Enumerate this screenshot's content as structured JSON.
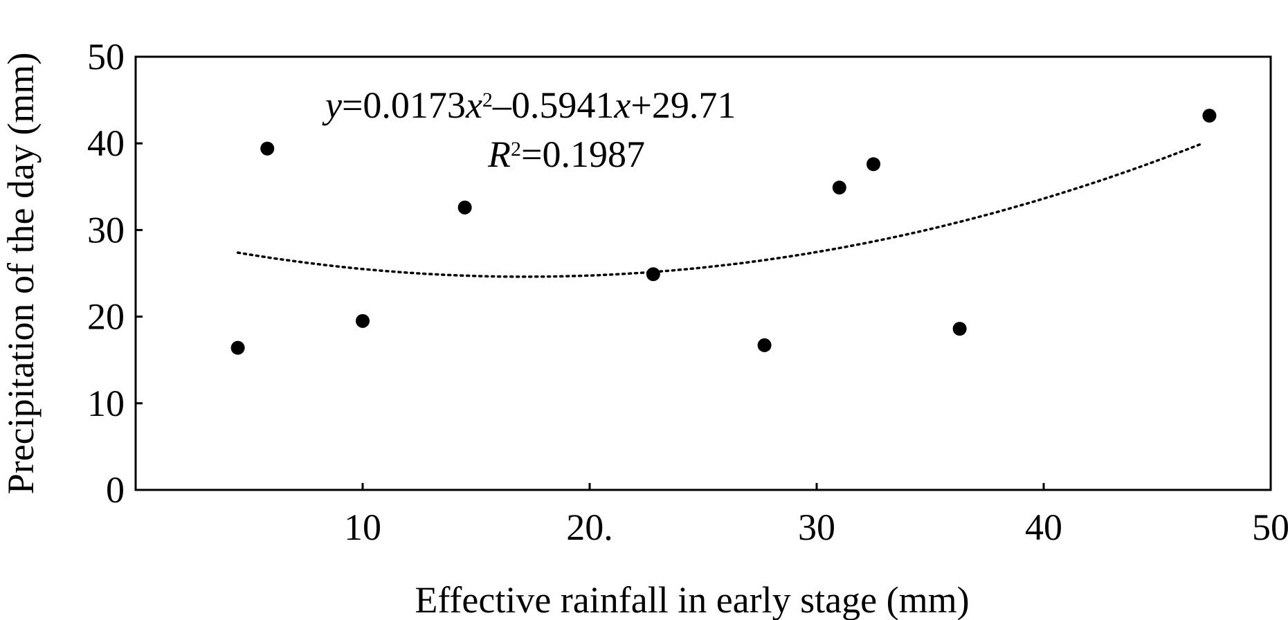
{
  "chart_data": {
    "type": "scatter",
    "xlabel": "Effective rainfall in early stage (mm)",
    "ylabel": "Precipitation of the day (mm)",
    "xlim": [
      0,
      50
    ],
    "ylim": [
      0,
      50
    ],
    "x_ticks": [
      {
        "value": 10,
        "label": "10"
      },
      {
        "value": 20,
        "label": "20."
      },
      {
        "value": 30,
        "label": "30"
      },
      {
        "value": 40,
        "label": "40"
      },
      {
        "value": 50,
        "label": "50"
      }
    ],
    "y_ticks": [
      {
        "value": 0,
        "label": "0"
      },
      {
        "value": 10,
        "label": "10"
      },
      {
        "value": 20,
        "label": "20"
      },
      {
        "value": 30,
        "label": "30"
      },
      {
        "value": 40,
        "label": "40"
      },
      {
        "value": 50,
        "label": "50"
      }
    ],
    "grid": false,
    "points": [
      {
        "x": 4.5,
        "y": 16.4
      },
      {
        "x": 5.8,
        "y": 39.4
      },
      {
        "x": 10.0,
        "y": 19.5
      },
      {
        "x": 14.5,
        "y": 32.6
      },
      {
        "x": 22.8,
        "y": 24.9
      },
      {
        "x": 27.7,
        "y": 16.7
      },
      {
        "x": 31.0,
        "y": 34.9
      },
      {
        "x": 32.5,
        "y": 37.6
      },
      {
        "x": 36.3,
        "y": 18.6
      },
      {
        "x": 47.3,
        "y": 43.2
      }
    ],
    "trendline": {
      "type": "polynomial",
      "coefficients": [
        0.0173,
        -0.5941,
        29.71
      ],
      "x_range": [
        4.5,
        47
      ],
      "style": "dotted",
      "equation": {
        "y_var": "y",
        "eq1": "=0.0173",
        "x_var1": "x",
        "sup1": "2",
        "eq2": "–0.5941",
        "x_var2": "x",
        "eq3": "+29.71",
        "r_var": "R",
        "sup2": "2",
        "r_value": "=0.1987"
      }
    }
  }
}
